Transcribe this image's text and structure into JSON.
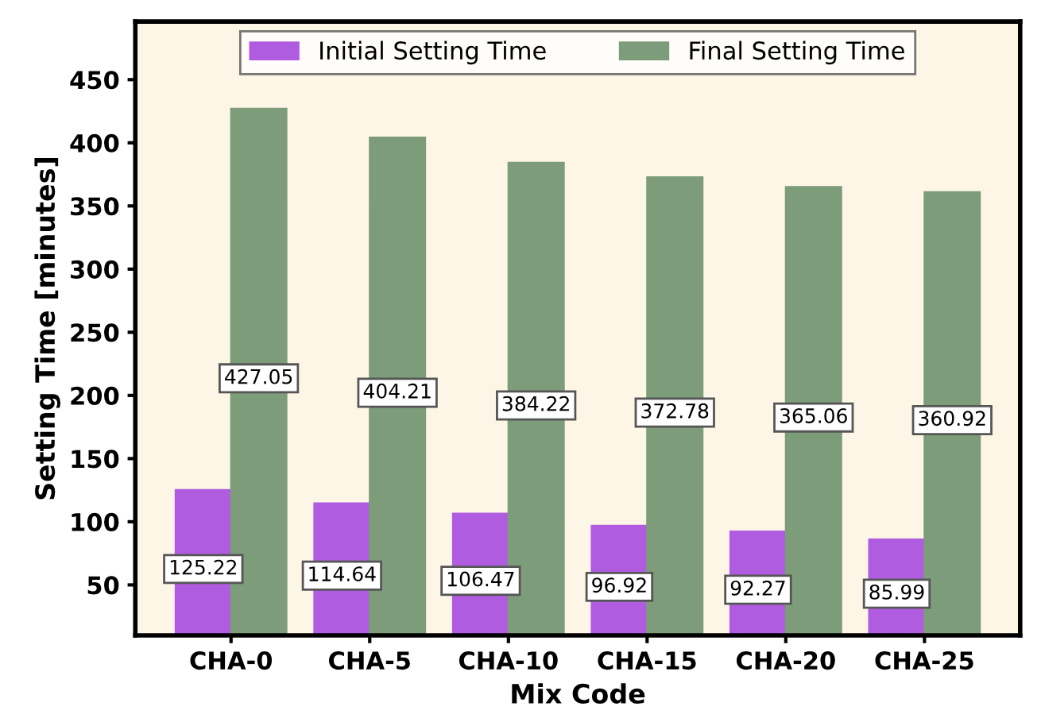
{
  "chart_data": {
    "type": "bar",
    "xlabel": "Mix Code",
    "ylabel": "Setting Time [minutes]",
    "categories": [
      "CHA-0",
      "CHA-5",
      "CHA-10",
      "CHA-15",
      "CHA-20",
      "CHA-25"
    ],
    "series": [
      {
        "name": "Initial Setting Time",
        "color": "#b05ce0",
        "values": [
          125.22,
          114.64,
          106.47,
          96.92,
          92.27,
          85.99
        ]
      },
      {
        "name": "Final Setting Time",
        "color": "#7d9c7a",
        "values": [
          427.05,
          404.21,
          384.22,
          372.78,
          365.06,
          360.92
        ]
      }
    ],
    "ylim": [
      10,
      496
    ],
    "yticks": [
      50,
      100,
      150,
      200,
      250,
      300,
      350,
      400,
      450
    ],
    "grid": false,
    "legend": "top",
    "data_labels": true
  }
}
